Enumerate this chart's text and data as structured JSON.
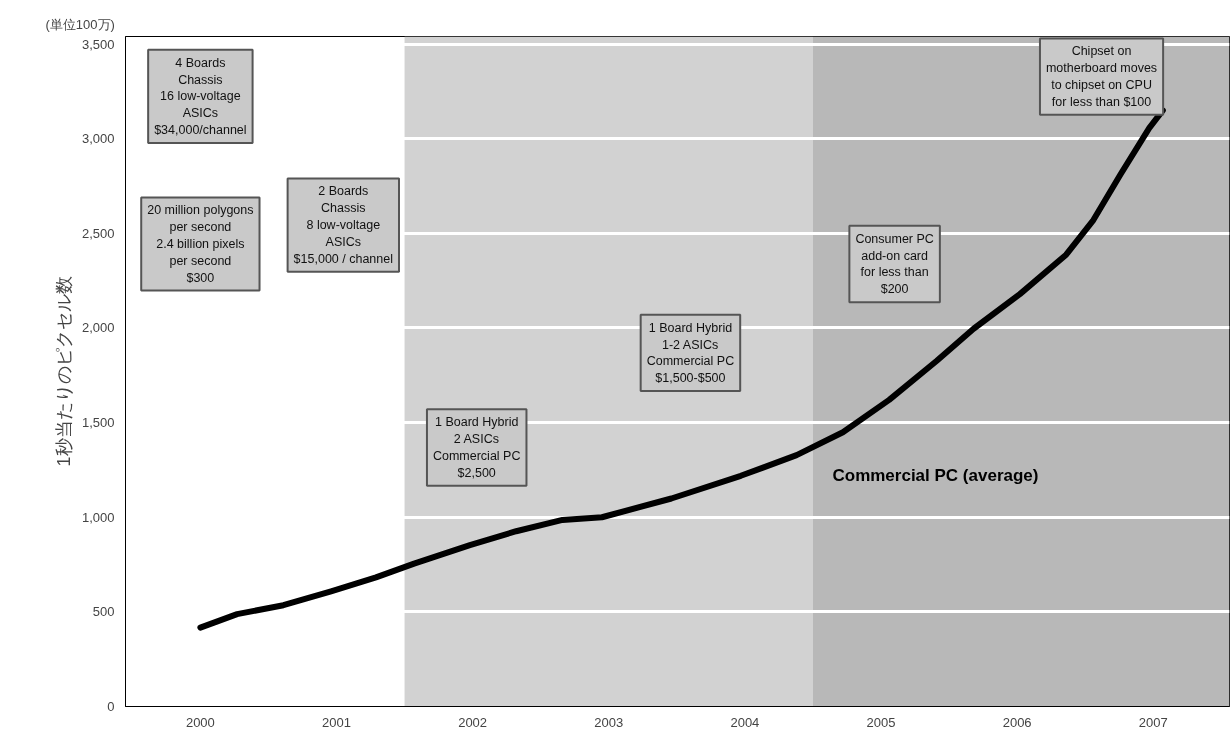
{
  "chart_data": {
    "type": "line",
    "ylabel": "1秒当たりのピクセル数",
    "x": [
      2000.0,
      2000.27,
      2000.61,
      2000.96,
      2001.29,
      2001.57,
      2001.98,
      2002.32,
      2002.66,
      2002.95,
      2003.46,
      2003.97,
      2004.38,
      2004.72,
      2005.06,
      2005.41,
      2005.68,
      2006.02,
      2006.36,
      2006.56,
      2006.76,
      2006.97,
      2007.07
    ],
    "series": [
      {
        "name": "Commercial PC (average)",
        "color": "#000000",
        "values": [
          417,
          488,
          535,
          608,
          682,
          755,
          853,
          926,
          986,
          1000,
          1099,
          1219,
          1328,
          1449,
          1620,
          1827,
          1996,
          2179,
          2387,
          2570,
          2812,
          3056,
          3150
        ]
      }
    ],
    "xlim": [
      1999.45,
      2007.56
    ],
    "xticks": [
      2000,
      2001,
      2002,
      2003,
      2004,
      2005,
      2006,
      2007
    ],
    "ylim": [
      0,
      3540
    ],
    "yticks": [
      0,
      500,
      {
        "value": 1000,
        "label": "1,000"
      },
      {
        "value": 1500,
        "label": "1,500"
      },
      {
        "value": 2000,
        "label": "2,000"
      },
      {
        "value": 2500,
        "label": "2,500"
      },
      {
        "value": 3000,
        "label": "3,000"
      },
      {
        "value": 3500,
        "label": "3,500"
      }
    ],
    "grid": "y",
    "line_style": "solid",
    "marker": "none",
    "bands": [
      {
        "axis": "x",
        "from": 2001.5,
        "to": 2004.5,
        "color": "#d2d2d2"
      },
      {
        "axis": "x",
        "from": 2004.5,
        "to": 2007.56,
        "color": "#b8b8b8"
      }
    ],
    "annotations": [
      "(単位100万)",
      "4 Boards\nChassis\n16 low-voltage\nASICs\n$34,000/channel",
      "20 million polygons\nper second\n2.4 billion pixels\nper second\n$300",
      "2 Boards\nChassis\n8 low-voltage\nASICs\n$15,000 / channel",
      "1 Board Hybrid\n2 ASICs\nCommercial PC\n$2,500",
      "1 Board Hybrid\n1-2 ASICs\nCommercial PC\n$1,500-$500",
      "Consumer PC\nadd-on card\nfor less than\n$200",
      "Chipset on\nmotherboard moves\nto chipset on CPU\nfor less than $100"
    ]
  }
}
